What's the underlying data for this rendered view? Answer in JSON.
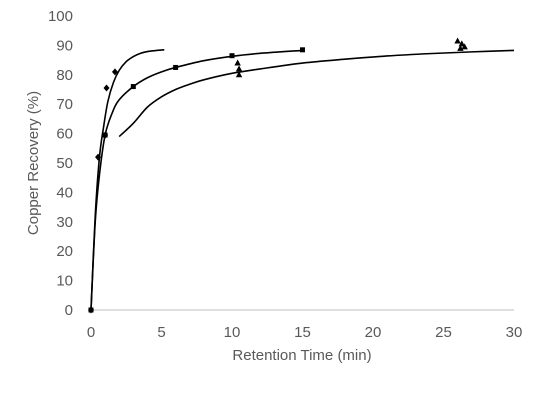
{
  "chart_data": {
    "type": "scatter",
    "title": "",
    "xlabel": "Retention Time (min)",
    "ylabel": "Copper Recovery (%)",
    "xlim": [
      0,
      30
    ],
    "ylim": [
      0,
      100
    ],
    "x_ticks": [
      0,
      5,
      10,
      15,
      20,
      25,
      30
    ],
    "y_ticks": [
      0,
      10,
      20,
      30,
      40,
      50,
      60,
      70,
      80,
      90,
      100
    ],
    "grid": false,
    "legend": "none",
    "series": [
      {
        "marker": "diamond",
        "points": [
          [
            0,
            0
          ],
          [
            0.5,
            52
          ],
          [
            1,
            59.5
          ],
          [
            1.1,
            75.5
          ],
          [
            1.7,
            81
          ]
        ],
        "fit": [
          [
            0,
            0
          ],
          [
            0.3,
            32
          ],
          [
            0.6,
            52
          ],
          [
            0.9,
            62.5
          ],
          [
            1.2,
            71
          ],
          [
            1.6,
            77.5
          ],
          [
            2,
            81.5
          ],
          [
            2.5,
            84.5
          ],
          [
            3,
            86.2
          ],
          [
            3.5,
            87.3
          ],
          [
            4,
            87.9
          ],
          [
            4.5,
            88.2
          ],
          [
            5.2,
            88.5
          ]
        ]
      },
      {
        "marker": "square",
        "points": [
          [
            0,
            0
          ],
          [
            1,
            59.5
          ],
          [
            3,
            76
          ],
          [
            6,
            82.5
          ],
          [
            10,
            86.5
          ],
          [
            15,
            88.5
          ]
        ],
        "fit": [
          [
            0,
            0
          ],
          [
            0.3,
            30
          ],
          [
            0.6,
            46
          ],
          [
            1,
            59.5
          ],
          [
            1.5,
            67
          ],
          [
            2,
            71.5
          ],
          [
            3,
            76
          ],
          [
            4,
            79
          ],
          [
            5,
            81
          ],
          [
            6,
            82.5
          ],
          [
            8,
            84.8
          ],
          [
            10,
            86.3
          ],
          [
            12,
            87.3
          ],
          [
            15,
            88.3
          ]
        ]
      },
      {
        "marker": "triangle",
        "points": [
          [
            10.4,
            84
          ],
          [
            10.5,
            80
          ],
          [
            10.5,
            82
          ],
          [
            26,
            91.5
          ],
          [
            26.2,
            89
          ],
          [
            26.3,
            90.5
          ],
          [
            26.5,
            89.5
          ]
        ],
        "fit": [
          [
            2,
            59
          ],
          [
            3,
            63.5
          ],
          [
            4,
            69
          ],
          [
            5,
            72.5
          ],
          [
            6,
            75
          ],
          [
            7,
            76.8
          ],
          [
            8,
            78.3
          ],
          [
            10,
            80.5
          ],
          [
            12,
            82
          ],
          [
            15,
            84
          ],
          [
            18,
            85.3
          ],
          [
            21,
            86.4
          ],
          [
            24,
            87.2
          ],
          [
            27,
            87.8
          ],
          [
            30,
            88.3
          ]
        ]
      }
    ]
  }
}
